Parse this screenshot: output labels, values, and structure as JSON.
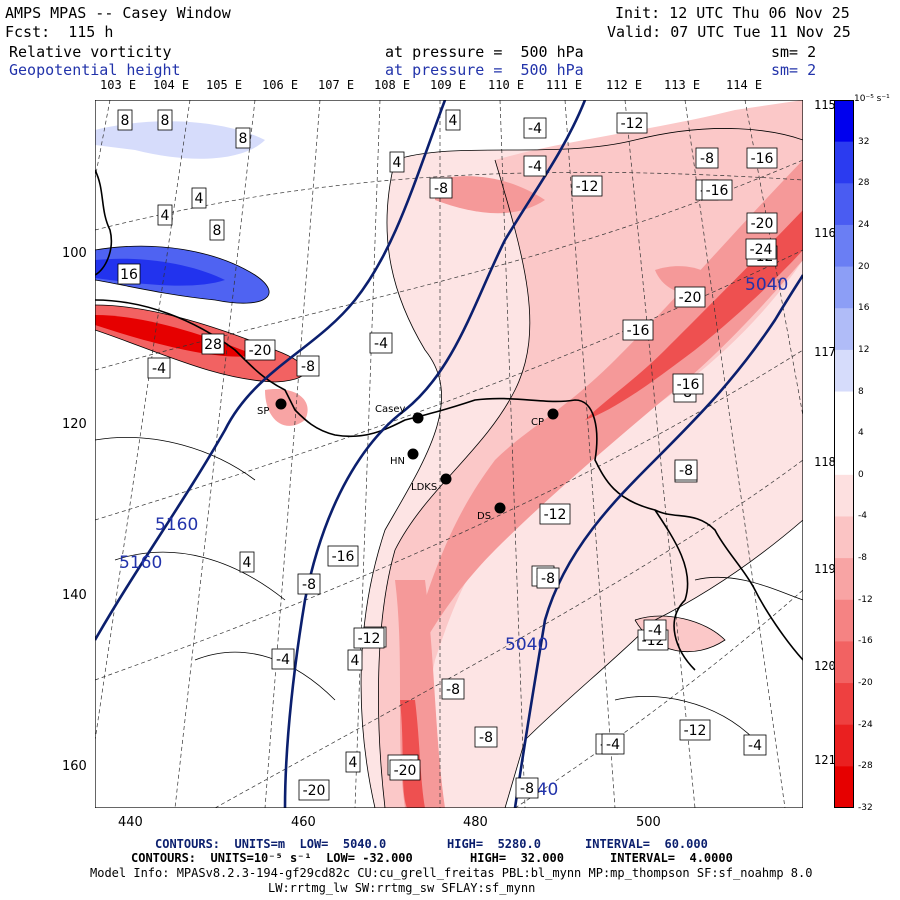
{
  "header": {
    "title": "AMPS MPAS -- Casey Window",
    "fcst": "Fcst:  115 h",
    "init": "Init: 12 UTC Thu 06 Nov 25",
    "valid": "Valid: 07 UTC Tue 11 Nov 25",
    "field1_name": "Relative vorticity",
    "field1_level": "at pressure =  500 hPa",
    "field1_sm": "sm= 2",
    "field2_name": "Geopotential height",
    "field2_level": "at pressure =  500 hPa",
    "field2_sm": "sm= 2"
  },
  "top_lon_labels": [
    "103 E",
    "104 E",
    "105 E",
    "106 E",
    "107 E",
    "108 E",
    "109 E",
    "110 E",
    "111 E",
    "112 E",
    "113 E",
    "114 E"
  ],
  "right_lon_labels": [
    "115 E",
    "116 E",
    "117 E",
    "118 E",
    "119 E",
    "120 E",
    "121 E"
  ],
  "x_axis_ticks": [
    "440",
    "460",
    "480",
    "500"
  ],
  "y_axis_ticks": [
    "100",
    "120",
    "140",
    "160"
  ],
  "colorbar": {
    "unit_label": "10⁻⁵ s⁻¹",
    "ticks": [
      "32",
      "28",
      "24",
      "20",
      "16",
      "12",
      "8",
      "4",
      "0",
      "-4",
      "-8",
      "-12",
      "-16",
      "-20",
      "-24",
      "-28",
      "-32"
    ],
    "colors": [
      "#0000ee",
      "#2b3bf0",
      "#4a5cf2",
      "#6a7ef4",
      "#8c9ef6",
      "#b0bcf8",
      "#d6dcfb",
      "#ffffff",
      "#ffffff",
      "#fde0e0",
      "#fbc4c4",
      "#f8a4a4",
      "#f58383",
      "#f26262",
      "#ee4040",
      "#ea2020",
      "#e60000"
    ]
  },
  "stations": [
    {
      "name": "Casey"
    },
    {
      "name": "HN"
    },
    {
      "name": "LDKS"
    },
    {
      "name": "DS"
    },
    {
      "name": "CP"
    },
    {
      "name": "SP"
    }
  ],
  "height_labels": [
    "5160",
    "5160",
    "5040",
    "5040",
    "5040"
  ],
  "vort_labels": [
    "8",
    "8",
    "8",
    "8",
    "4",
    "4",
    "4",
    "4",
    "4",
    "4",
    "16",
    "28",
    "-20",
    "-8",
    "-4",
    "-4",
    "-4",
    "-4",
    "-8",
    "-12",
    "-12",
    "-16",
    "-8",
    "-4",
    "-12",
    "-16",
    "-20",
    "-24",
    "-16",
    "-20",
    "-16",
    "-20",
    "-8",
    "-8",
    "-4",
    "-12",
    "-12",
    "-8",
    "-4",
    "-4",
    "-12",
    "-4",
    "-4",
    "-16",
    "-20",
    "-16",
    "-8",
    "-8",
    "-8",
    "-8",
    "-4",
    "-8",
    "-4",
    "4",
    "-12"
  ],
  "footer": {
    "line1_a": "CONTOURS:  UNITS=m  LOW=  5040.0",
    "line1_b": "HIGH=  5280.0",
    "line1_c": "INTERVAL=  60.000",
    "line2_a": "CONTOURS:  UNITS=10⁻⁵ s⁻¹  LOW= -32.000",
    "line2_b": "HIGH=  32.000",
    "line2_c": "INTERVAL=  4.0000",
    "model_info": "Model Info: MPASv8.2.3-194-gf29cd82c CU:cu_grell_freitas PBL:bl_mynn MP:mp_thompson SF:sf_noahmp 8.0",
    "model_info2": "LW:rrtmg_lw SW:rrtmg_sw SFLAY:sf_mynn"
  }
}
